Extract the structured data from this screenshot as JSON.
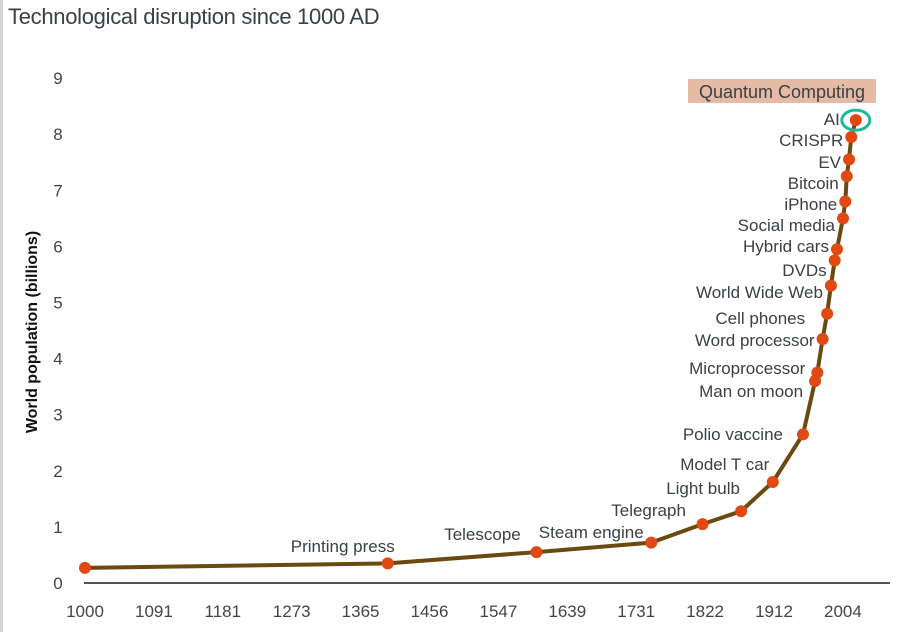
{
  "chart_data": {
    "type": "line",
    "title": "Technological disruption since 1000 AD",
    "xlabel": "",
    "ylabel": "World population (billions)",
    "xlim": [
      1000,
      2004
    ],
    "ylim": [
      0,
      9
    ],
    "x_ticks": [
      "1000",
      "1091",
      "1181",
      "1273",
      "1365",
      "1456",
      "1547",
      "1639",
      "1731",
      "1822",
      "1912",
      "2004"
    ],
    "y_ticks": [
      "0",
      "1",
      "2",
      "3",
      "4",
      "5",
      "6",
      "7",
      "8",
      "9"
    ],
    "grid": false,
    "colors": {
      "line": "#6b4a12",
      "points": "#e04a12",
      "highlight_ring": "#1fb89a",
      "highlight_box": "#e6bba5"
    },
    "points": [
      {
        "x": 1000,
        "y": 0.27,
        "label": ""
      },
      {
        "x": 1401,
        "y": 0.35,
        "label": "Printing press"
      },
      {
        "x": 1598,
        "y": 0.55,
        "label": "Telescope"
      },
      {
        "x": 1750,
        "y": 0.72,
        "label": "Steam engine"
      },
      {
        "x": 1818,
        "y": 1.05,
        "label": "Telegraph"
      },
      {
        "x": 1869,
        "y": 1.28,
        "label": "Light bulb"
      },
      {
        "x": 1911,
        "y": 1.8,
        "label": "Model T car"
      },
      {
        "x": 1951,
        "y": 2.65,
        "label": "Polio vaccine"
      },
      {
        "x": 1967,
        "y": 3.6,
        "label": "Man on moon"
      },
      {
        "x": 1970,
        "y": 3.75,
        "label": "Microprocessor"
      },
      {
        "x": 1977,
        "y": 4.35,
        "label": "Word processor"
      },
      {
        "x": 1983,
        "y": 4.8,
        "label": "Cell phones"
      },
      {
        "x": 1988,
        "y": 5.3,
        "label": "World Wide Web"
      },
      {
        "x": 1993,
        "y": 5.75,
        "label": "DVDs"
      },
      {
        "x": 1996,
        "y": 5.95,
        "label": "Hybrid cars"
      },
      {
        "x": 2004,
        "y": 6.5,
        "label": "Social media"
      },
      {
        "x": 2007,
        "y": 6.8,
        "label": "iPhone"
      },
      {
        "x": 2009,
        "y": 7.25,
        "label": "Bitcoin"
      },
      {
        "x": 2012,
        "y": 7.55,
        "label": "EV"
      },
      {
        "x": 2015,
        "y": 7.95,
        "label": "CRISPR"
      },
      {
        "x": 2021,
        "y": 8.25,
        "label": "AI"
      }
    ],
    "annotations": [
      "Quantum Computing"
    ]
  }
}
